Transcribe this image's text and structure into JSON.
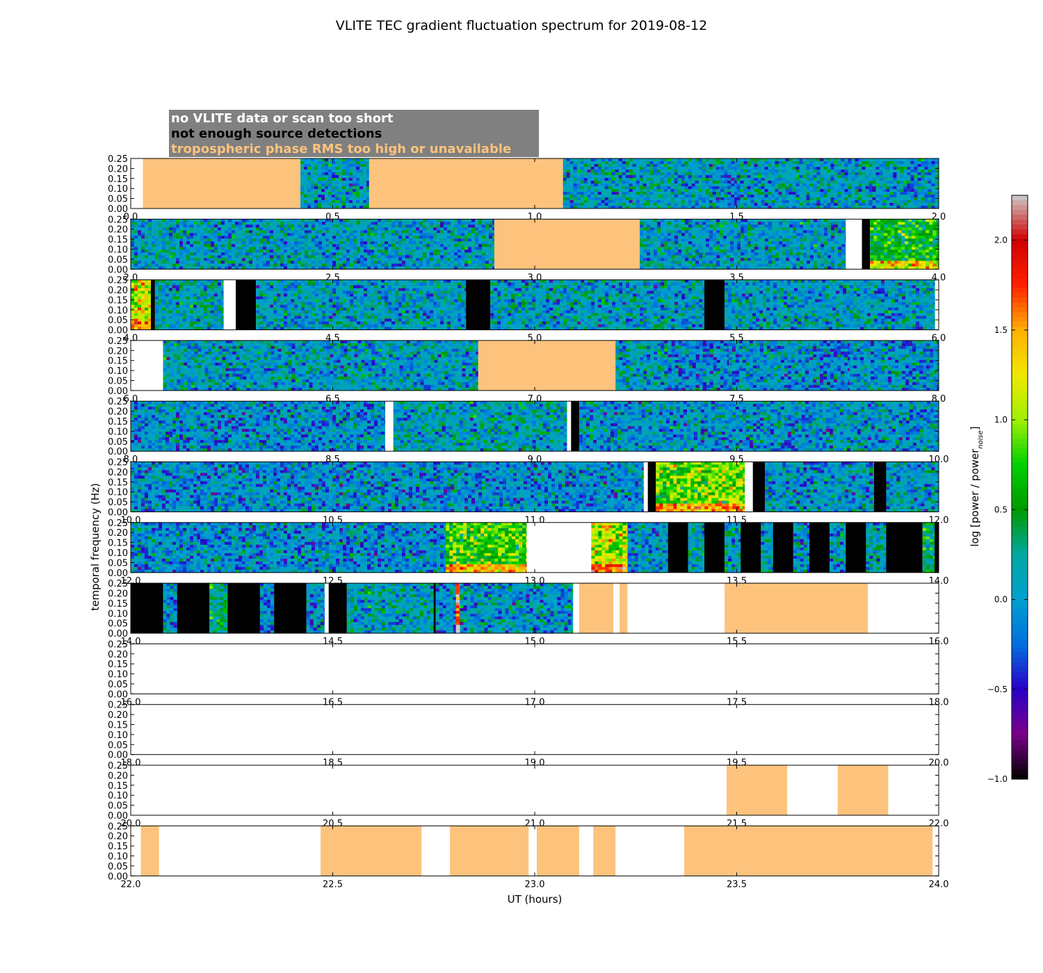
{
  "chart_data": {
    "type": "heatmap",
    "title": "VLITE TEC gradient fluctuation spectrum for 2019-08-12",
    "xlabel": "UT (hours)",
    "ylabel": "temporal frequency (Hz)",
    "colorbar_label": "log [power / power",
    "colorbar_label_sub": "noise",
    "colorbar_label_end": "]",
    "colorbar_range": [
      -1.0,
      2.25
    ],
    "colorbar_ticks": [
      "2.0",
      "1.5",
      "1.0",
      "0.5",
      "0.0",
      "−0.5",
      "−1.0"
    ],
    "colormap": [
      "#000000",
      "#7a0088",
      "#2a00c8",
      "#0070dd",
      "#00a0d0",
      "#00a8a0",
      "#009a00",
      "#00d000",
      "#a0f000",
      "#f0e800",
      "#ffb000",
      "#ff2000",
      "#d00000",
      "#cccccc"
    ],
    "ylim": [
      0,
      0.25
    ],
    "y_tick_labels": [
      "0.00",
      "0.05",
      "0.10",
      "0.15",
      "0.20",
      "0.25"
    ],
    "legend": [
      {
        "label": "no VLITE data or scan too short",
        "color": "#ffffff"
      },
      {
        "label": "not enough source detections",
        "color": "#000000"
      },
      {
        "label": "tropospheric phase RMS too high or unavailable",
        "color": "#fdc37d"
      }
    ],
    "legend_background": "#808080",
    "category_colors": {
      "tropo": "#fdc37d",
      "nodet": "#000000",
      "nodata": "#ffffff"
    },
    "panels": [
      {
        "range": [
          0,
          2
        ],
        "x_tick_labels": [
          "0.0",
          "0.5",
          "1.0",
          "1.5",
          "2.0"
        ],
        "segments": [
          {
            "start": 0.0,
            "end": 0.03,
            "kind": "nodata"
          },
          {
            "start": 0.03,
            "end": 0.42,
            "kind": "tropo"
          },
          {
            "start": 0.42,
            "end": 0.59,
            "kind": "spec",
            "level": 0.05
          },
          {
            "start": 0.59,
            "end": 1.07,
            "kind": "tropo"
          },
          {
            "start": 1.07,
            "end": 1.46,
            "kind": "spec",
            "level": 0.05
          },
          {
            "start": 1.46,
            "end": 1.5,
            "kind": "spec",
            "level": -0.1
          },
          {
            "start": 1.5,
            "end": 2.0,
            "kind": "spec",
            "level": 0.05
          }
        ]
      },
      {
        "range": [
          2,
          4
        ],
        "x_tick_labels": [
          "2.0",
          "2.5",
          "3.0",
          "3.5",
          "4.0"
        ],
        "segments": [
          {
            "start": 2.0,
            "end": 2.9,
            "kind": "spec",
            "level": 0.05
          },
          {
            "start": 2.9,
            "end": 3.26,
            "kind": "tropo"
          },
          {
            "start": 3.26,
            "end": 3.77,
            "kind": "spec",
            "level": 0.05
          },
          {
            "start": 3.77,
            "end": 3.81,
            "kind": "nodata"
          },
          {
            "start": 3.81,
            "end": 3.83,
            "kind": "nodet"
          },
          {
            "start": 3.83,
            "end": 4.0,
            "kind": "spec",
            "level": 0.6
          }
        ]
      },
      {
        "range": [
          4,
          6
        ],
        "x_tick_labels": [
          "4.0",
          "4.5",
          "5.0",
          "5.5",
          "6.0"
        ],
        "segments": [
          {
            "start": 4.0,
            "end": 4.05,
            "kind": "spec",
            "level": 1.2
          },
          {
            "start": 4.05,
            "end": 4.06,
            "kind": "nodet"
          },
          {
            "start": 4.06,
            "end": 4.23,
            "kind": "spec",
            "level": 0.1
          },
          {
            "start": 4.23,
            "end": 4.26,
            "kind": "nodata"
          },
          {
            "start": 4.26,
            "end": 4.31,
            "kind": "nodet"
          },
          {
            "start": 4.31,
            "end": 4.83,
            "kind": "spec",
            "level": 0.05
          },
          {
            "start": 4.83,
            "end": 4.89,
            "kind": "nodet"
          },
          {
            "start": 4.89,
            "end": 5.42,
            "kind": "spec",
            "level": 0.05
          },
          {
            "start": 5.42,
            "end": 5.47,
            "kind": "nodet"
          },
          {
            "start": 5.47,
            "end": 5.99,
            "kind": "spec",
            "level": 0.05
          }
        ]
      },
      {
        "range": [
          6,
          8
        ],
        "x_tick_labels": [
          "6.0",
          "6.5",
          "7.0",
          "7.5",
          "8.0"
        ],
        "segments": [
          {
            "start": 6.0,
            "end": 6.08,
            "kind": "nodata"
          },
          {
            "start": 6.08,
            "end": 6.86,
            "kind": "spec",
            "level": 0.05
          },
          {
            "start": 6.86,
            "end": 7.2,
            "kind": "tropo"
          },
          {
            "start": 7.2,
            "end": 7.33,
            "kind": "spec",
            "level": 0.05
          },
          {
            "start": 7.33,
            "end": 7.48,
            "kind": "spec",
            "level": -0.1
          },
          {
            "start": 7.48,
            "end": 7.68,
            "kind": "spec",
            "level": 0.0
          },
          {
            "start": 7.68,
            "end": 7.78,
            "kind": "spec",
            "level": -0.1
          },
          {
            "start": 7.78,
            "end": 8.0,
            "kind": "spec",
            "level": 0.0
          }
        ]
      },
      {
        "range": [
          8,
          10
        ],
        "x_tick_labels": [
          "8.0",
          "8.5",
          "9.0",
          "9.5",
          "10.0"
        ],
        "segments": [
          {
            "start": 8.0,
            "end": 8.63,
            "kind": "spec",
            "level": -0.05
          },
          {
            "start": 8.63,
            "end": 8.65,
            "kind": "nodata"
          },
          {
            "start": 8.65,
            "end": 9.08,
            "kind": "spec",
            "level": 0.1
          },
          {
            "start": 9.08,
            "end": 9.09,
            "kind": "nodata"
          },
          {
            "start": 9.09,
            "end": 9.11,
            "kind": "nodet"
          },
          {
            "start": 9.11,
            "end": 10.0,
            "kind": "spec",
            "level": 0.0
          }
        ]
      },
      {
        "range": [
          10,
          12
        ],
        "x_tick_labels": [
          "10.0",
          "10.5",
          "11.0",
          "11.5",
          "12.0"
        ],
        "segments": [
          {
            "start": 10.0,
            "end": 11.27,
            "kind": "spec",
            "level": -0.05
          },
          {
            "start": 11.27,
            "end": 11.28,
            "kind": "nodata"
          },
          {
            "start": 11.28,
            "end": 11.3,
            "kind": "nodet"
          },
          {
            "start": 11.3,
            "end": 11.52,
            "kind": "spec",
            "level": 0.9
          },
          {
            "start": 11.52,
            "end": 11.54,
            "kind": "nodata"
          },
          {
            "start": 11.54,
            "end": 11.57,
            "kind": "nodet"
          },
          {
            "start": 11.57,
            "end": 11.84,
            "kind": "spec",
            "level": 0.0
          },
          {
            "start": 11.84,
            "end": 11.87,
            "kind": "nodet"
          },
          {
            "start": 11.87,
            "end": 12.0,
            "kind": "spec",
            "level": 0.05
          }
        ]
      },
      {
        "range": [
          12,
          14
        ],
        "x_tick_labels": [
          "12.0",
          "12.5",
          "13.0",
          "13.5",
          "14.0"
        ],
        "segments": [
          {
            "start": 12.0,
            "end": 12.78,
            "kind": "spec",
            "level": -0.05
          },
          {
            "start": 12.78,
            "end": 12.98,
            "kind": "spec",
            "level": 0.8
          },
          {
            "start": 12.98,
            "end": 13.14,
            "kind": "nodata"
          },
          {
            "start": 13.14,
            "end": 13.23,
            "kind": "spec",
            "level": 1.1
          },
          {
            "start": 13.23,
            "end": 13.33,
            "kind": "spec",
            "level": 0.0
          },
          {
            "start": 13.33,
            "end": 13.38,
            "kind": "nodet"
          },
          {
            "start": 13.38,
            "end": 13.42,
            "kind": "spec",
            "level": 0.05
          },
          {
            "start": 13.42,
            "end": 13.47,
            "kind": "nodet"
          },
          {
            "start": 13.47,
            "end": 13.51,
            "kind": "spec",
            "level": 0.1
          },
          {
            "start": 13.51,
            "end": 13.56,
            "kind": "nodet"
          },
          {
            "start": 13.56,
            "end": 13.59,
            "kind": "spec",
            "level": 0.05
          },
          {
            "start": 13.59,
            "end": 13.64,
            "kind": "nodet"
          },
          {
            "start": 13.64,
            "end": 13.68,
            "kind": "spec",
            "level": 0.0
          },
          {
            "start": 13.68,
            "end": 13.73,
            "kind": "nodet"
          },
          {
            "start": 13.73,
            "end": 13.77,
            "kind": "spec",
            "level": 0.05
          },
          {
            "start": 13.77,
            "end": 13.82,
            "kind": "nodet"
          },
          {
            "start": 13.82,
            "end": 13.87,
            "kind": "spec",
            "level": 0.1
          },
          {
            "start": 13.87,
            "end": 13.96,
            "kind": "nodet"
          },
          {
            "start": 13.96,
            "end": 13.99,
            "kind": "spec",
            "level": 0.4
          },
          {
            "start": 13.99,
            "end": 14.0,
            "kind": "nodet"
          }
        ]
      },
      {
        "range": [
          14,
          16
        ],
        "x_tick_labels": [
          "14.0",
          "14.5",
          "15.0",
          "15.5",
          "16.0"
        ],
        "segments": [
          {
            "start": 14.0,
            "end": 14.08,
            "kind": "nodet"
          },
          {
            "start": 14.08,
            "end": 14.115,
            "kind": "spec",
            "level": -0.05
          },
          {
            "start": 14.115,
            "end": 14.195,
            "kind": "nodet"
          },
          {
            "start": 14.195,
            "end": 14.24,
            "kind": "spec",
            "level": 0.3
          },
          {
            "start": 14.24,
            "end": 14.32,
            "kind": "nodet"
          },
          {
            "start": 14.32,
            "end": 14.355,
            "kind": "spec",
            "level": -0.05
          },
          {
            "start": 14.355,
            "end": 14.435,
            "kind": "nodet"
          },
          {
            "start": 14.435,
            "end": 14.48,
            "kind": "spec",
            "level": -0.05
          },
          {
            "start": 14.48,
            "end": 14.49,
            "kind": "nodata"
          },
          {
            "start": 14.49,
            "end": 14.535,
            "kind": "nodet"
          },
          {
            "start": 14.535,
            "end": 14.75,
            "kind": "spec",
            "level": 0.1
          },
          {
            "start": 14.75,
            "end": 14.755,
            "kind": "nodet"
          },
          {
            "start": 14.755,
            "end": 14.805,
            "kind": "spec",
            "level": -0.05
          },
          {
            "start": 14.805,
            "end": 14.815,
            "kind": "spec",
            "level": 1.9
          },
          {
            "start": 14.815,
            "end": 15.095,
            "kind": "spec",
            "level": 0.0
          },
          {
            "start": 15.095,
            "end": 15.11,
            "kind": "nodata"
          },
          {
            "start": 15.11,
            "end": 15.195,
            "kind": "tropo"
          },
          {
            "start": 15.195,
            "end": 15.21,
            "kind": "nodata"
          },
          {
            "start": 15.21,
            "end": 15.23,
            "kind": "tropo"
          },
          {
            "start": 15.23,
            "end": 15.47,
            "kind": "nodata"
          },
          {
            "start": 15.47,
            "end": 15.825,
            "kind": "tropo"
          },
          {
            "start": 15.825,
            "end": 16.0,
            "kind": "nodata"
          }
        ]
      },
      {
        "range": [
          16,
          18
        ],
        "x_tick_labels": [
          "16.0",
          "16.5",
          "17.0",
          "17.5",
          "18.0"
        ],
        "segments": []
      },
      {
        "range": [
          18,
          20
        ],
        "x_tick_labels": [
          "18.0",
          "18.5",
          "19.0",
          "19.5",
          "20.0"
        ],
        "segments": []
      },
      {
        "range": [
          20,
          22
        ],
        "x_tick_labels": [
          "20.0",
          "20.5",
          "21.0",
          "21.5",
          "22.0"
        ],
        "segments": [
          {
            "start": 21.475,
            "end": 21.625,
            "kind": "tropo"
          },
          {
            "start": 21.75,
            "end": 21.875,
            "kind": "tropo"
          }
        ]
      },
      {
        "range": [
          22,
          24
        ],
        "x_tick_labels": [
          "22.0",
          "22.5",
          "23.0",
          "23.5",
          "24.0"
        ],
        "segments": [
          {
            "start": 22.025,
            "end": 22.07,
            "kind": "tropo"
          },
          {
            "start": 22.47,
            "end": 22.72,
            "kind": "tropo"
          },
          {
            "start": 22.79,
            "end": 22.985,
            "kind": "tropo"
          },
          {
            "start": 23.005,
            "end": 23.11,
            "kind": "tropo"
          },
          {
            "start": 23.145,
            "end": 23.2,
            "kind": "tropo"
          },
          {
            "start": 23.37,
            "end": 23.985,
            "kind": "tropo"
          }
        ]
      }
    ]
  }
}
